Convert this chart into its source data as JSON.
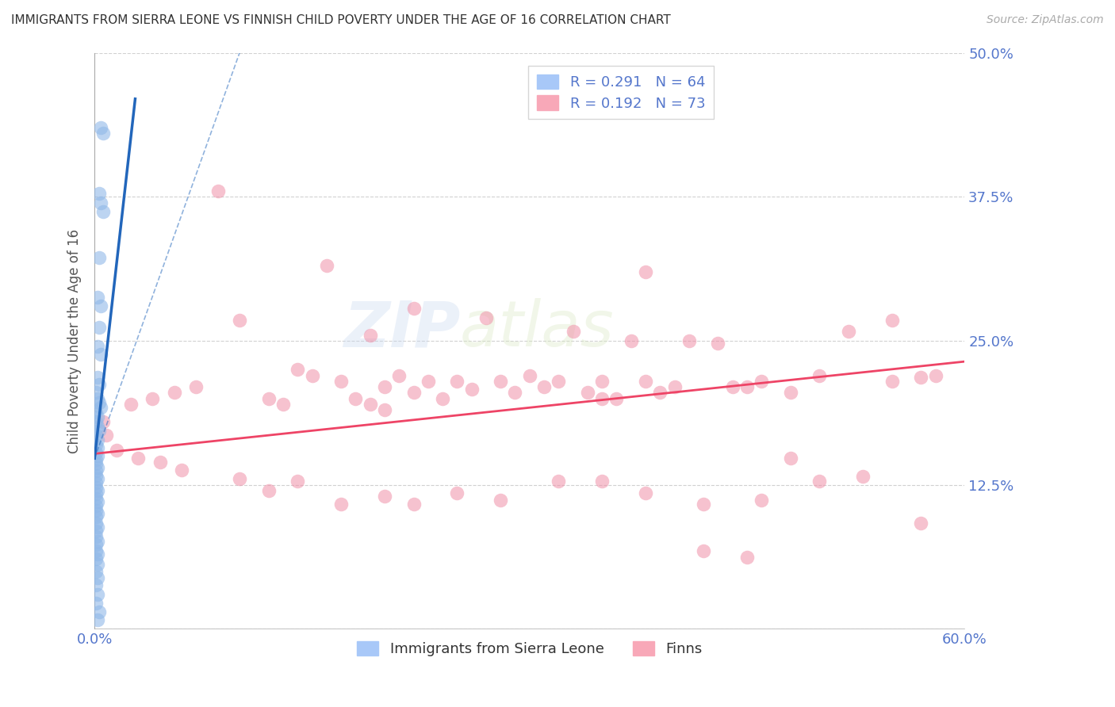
{
  "title": "IMMIGRANTS FROM SIERRA LEONE VS FINNISH CHILD POVERTY UNDER THE AGE OF 16 CORRELATION CHART",
  "source": "Source: ZipAtlas.com",
  "ylabel": "Child Poverty Under the Age of 16",
  "xlim": [
    0.0,
    0.6
  ],
  "ylim": [
    0.0,
    0.5
  ],
  "xticks": [
    0.0,
    0.1,
    0.2,
    0.3,
    0.4,
    0.5,
    0.6
  ],
  "xticklabels": [
    "0.0%",
    "",
    "",
    "",
    "",
    "",
    "60.0%"
  ],
  "yticks": [
    0.0,
    0.125,
    0.25,
    0.375,
    0.5
  ],
  "yticklabels": [
    "",
    "12.5%",
    "25.0%",
    "37.5%",
    "50.0%"
  ],
  "blue_color": "#90b8e8",
  "pink_color": "#f090a8",
  "blue_line_color": "#2266bb",
  "pink_line_color": "#ee4466",
  "axis_label_color": "#5577cc",
  "watermark_color": "#c8d8f0",
  "blue_scatter": [
    [
      0.004,
      0.435
    ],
    [
      0.006,
      0.43
    ],
    [
      0.003,
      0.378
    ],
    [
      0.004,
      0.37
    ],
    [
      0.006,
      0.362
    ],
    [
      0.003,
      0.322
    ],
    [
      0.002,
      0.288
    ],
    [
      0.004,
      0.28
    ],
    [
      0.003,
      0.262
    ],
    [
      0.002,
      0.245
    ],
    [
      0.004,
      0.238
    ],
    [
      0.002,
      0.218
    ],
    [
      0.003,
      0.212
    ],
    [
      0.001,
      0.205
    ],
    [
      0.002,
      0.2
    ],
    [
      0.003,
      0.196
    ],
    [
      0.004,
      0.192
    ],
    [
      0.001,
      0.188
    ],
    [
      0.002,
      0.184
    ],
    [
      0.001,
      0.18
    ],
    [
      0.002,
      0.176
    ],
    [
      0.003,
      0.172
    ],
    [
      0.001,
      0.168
    ],
    [
      0.002,
      0.164
    ],
    [
      0.001,
      0.16
    ],
    [
      0.002,
      0.157
    ],
    [
      0.001,
      0.153
    ],
    [
      0.002,
      0.15
    ],
    [
      0.001,
      0.147
    ],
    [
      0.001,
      0.143
    ],
    [
      0.002,
      0.14
    ],
    [
      0.001,
      0.137
    ],
    [
      0.001,
      0.133
    ],
    [
      0.002,
      0.13
    ],
    [
      0.001,
      0.127
    ],
    [
      0.001,
      0.123
    ],
    [
      0.002,
      0.12
    ],
    [
      0.001,
      0.117
    ],
    [
      0.001,
      0.113
    ],
    [
      0.002,
      0.11
    ],
    [
      0.001,
      0.107
    ],
    [
      0.001,
      0.103
    ],
    [
      0.002,
      0.1
    ],
    [
      0.001,
      0.097
    ],
    [
      0.001,
      0.092
    ],
    [
      0.002,
      0.088
    ],
    [
      0.001,
      0.085
    ],
    [
      0.001,
      0.08
    ],
    [
      0.002,
      0.076
    ],
    [
      0.001,
      0.073
    ],
    [
      0.001,
      0.068
    ],
    [
      0.002,
      0.065
    ],
    [
      0.001,
      0.061
    ],
    [
      0.002,
      0.056
    ],
    [
      0.001,
      0.05
    ],
    [
      0.002,
      0.044
    ],
    [
      0.001,
      0.038
    ],
    [
      0.002,
      0.03
    ],
    [
      0.001,
      0.022
    ],
    [
      0.003,
      0.015
    ],
    [
      0.002,
      0.008
    ]
  ],
  "pink_scatter": [
    [
      0.006,
      0.18
    ],
    [
      0.008,
      0.168
    ],
    [
      0.025,
      0.195
    ],
    [
      0.04,
      0.2
    ],
    [
      0.055,
      0.205
    ],
    [
      0.07,
      0.21
    ],
    [
      0.085,
      0.38
    ],
    [
      0.1,
      0.268
    ],
    [
      0.12,
      0.2
    ],
    [
      0.13,
      0.195
    ],
    [
      0.14,
      0.225
    ],
    [
      0.15,
      0.22
    ],
    [
      0.16,
      0.315
    ],
    [
      0.17,
      0.215
    ],
    [
      0.18,
      0.2
    ],
    [
      0.19,
      0.195
    ],
    [
      0.19,
      0.255
    ],
    [
      0.2,
      0.21
    ],
    [
      0.2,
      0.19
    ],
    [
      0.21,
      0.22
    ],
    [
      0.22,
      0.278
    ],
    [
      0.22,
      0.205
    ],
    [
      0.23,
      0.215
    ],
    [
      0.24,
      0.2
    ],
    [
      0.25,
      0.215
    ],
    [
      0.26,
      0.208
    ],
    [
      0.27,
      0.27
    ],
    [
      0.28,
      0.215
    ],
    [
      0.29,
      0.205
    ],
    [
      0.3,
      0.22
    ],
    [
      0.31,
      0.21
    ],
    [
      0.32,
      0.215
    ],
    [
      0.33,
      0.258
    ],
    [
      0.34,
      0.205
    ],
    [
      0.35,
      0.215
    ],
    [
      0.35,
      0.2
    ],
    [
      0.36,
      0.2
    ],
    [
      0.37,
      0.25
    ],
    [
      0.38,
      0.215
    ],
    [
      0.38,
      0.31
    ],
    [
      0.39,
      0.205
    ],
    [
      0.4,
      0.21
    ],
    [
      0.41,
      0.25
    ],
    [
      0.43,
      0.248
    ],
    [
      0.44,
      0.21
    ],
    [
      0.45,
      0.21
    ],
    [
      0.46,
      0.215
    ],
    [
      0.48,
      0.205
    ],
    [
      0.5,
      0.22
    ],
    [
      0.52,
      0.258
    ],
    [
      0.55,
      0.268
    ],
    [
      0.55,
      0.215
    ],
    [
      0.57,
      0.218
    ],
    [
      0.58,
      0.22
    ],
    [
      0.015,
      0.155
    ],
    [
      0.03,
      0.148
    ],
    [
      0.045,
      0.145
    ],
    [
      0.06,
      0.138
    ],
    [
      0.1,
      0.13
    ],
    [
      0.12,
      0.12
    ],
    [
      0.14,
      0.128
    ],
    [
      0.17,
      0.108
    ],
    [
      0.2,
      0.115
    ],
    [
      0.22,
      0.108
    ],
    [
      0.25,
      0.118
    ],
    [
      0.28,
      0.112
    ],
    [
      0.32,
      0.128
    ],
    [
      0.35,
      0.128
    ],
    [
      0.38,
      0.118
    ],
    [
      0.42,
      0.108
    ],
    [
      0.46,
      0.112
    ],
    [
      0.48,
      0.148
    ],
    [
      0.5,
      0.128
    ],
    [
      0.53,
      0.132
    ],
    [
      0.57,
      0.092
    ],
    [
      0.42,
      0.068
    ],
    [
      0.45,
      0.062
    ]
  ],
  "blue_line": {
    "x0": 0.0,
    "x1": 0.028,
    "y0": 0.148,
    "y1": 0.46
  },
  "blue_line_ext": {
    "x0": 0.0,
    "x1": 0.1,
    "y0": 0.148,
    "y1": 0.5
  },
  "pink_line": {
    "x0": 0.0,
    "x1": 0.6,
    "y0": 0.152,
    "y1": 0.232
  }
}
